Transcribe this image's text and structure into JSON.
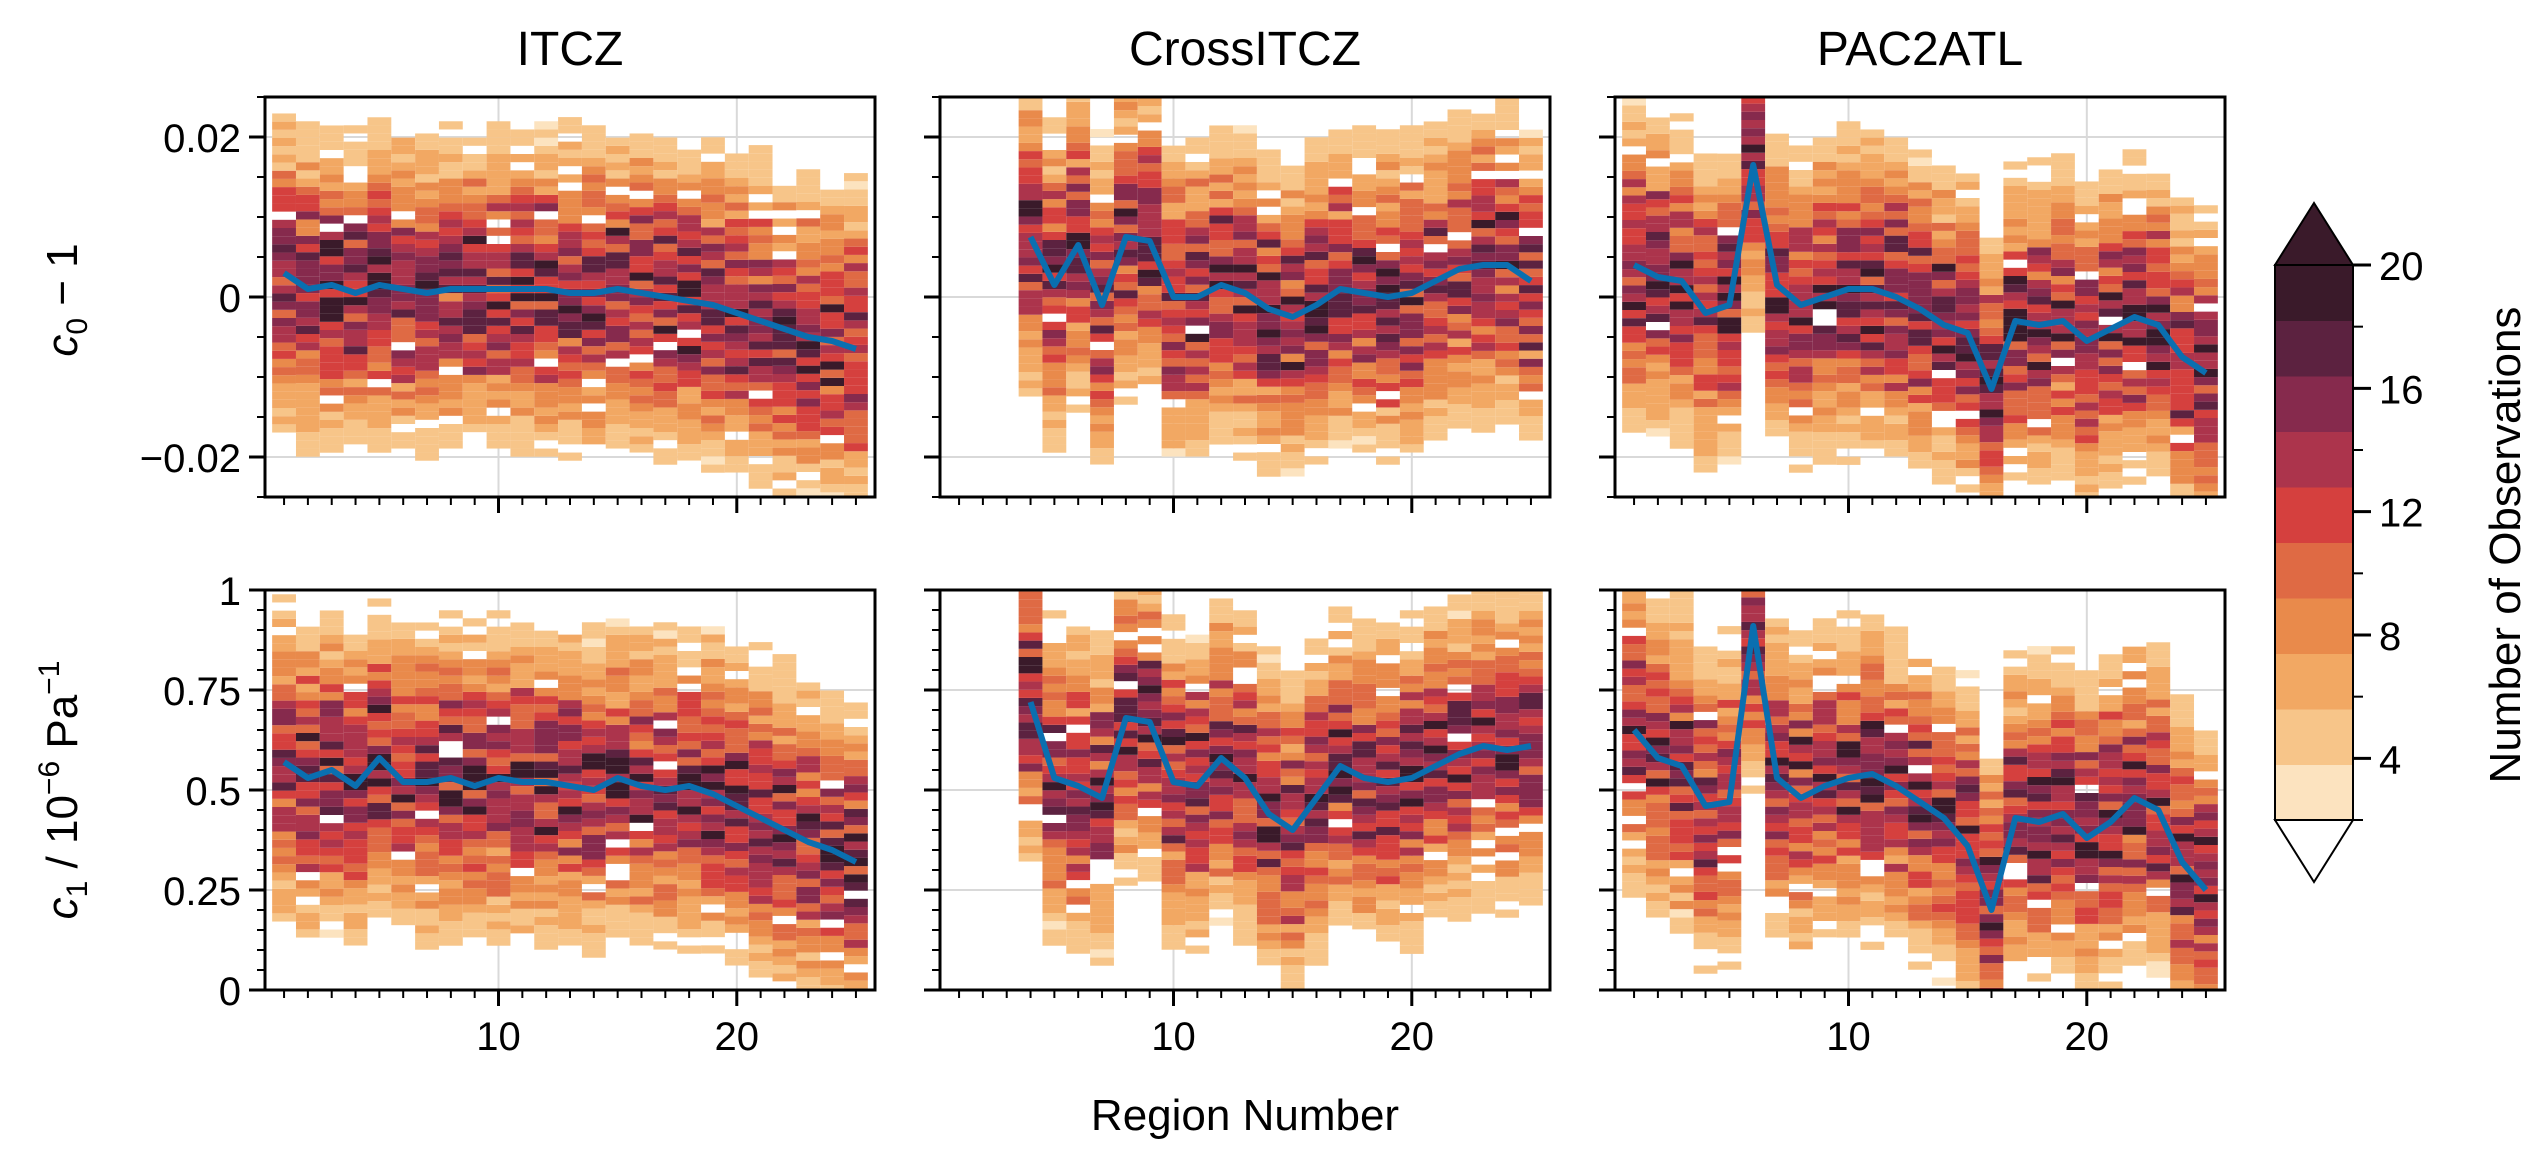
{
  "figure": {
    "xlabel": "Region Number",
    "row_labels": {
      "c0": {
        "main": "c",
        "sub": "0",
        "rest": " − 1"
      },
      "c1": {
        "main": "c",
        "sub": "1",
        "rest": " / 10",
        "sup1": "−6",
        "rest2": " Pa",
        "sup2": "−1"
      }
    },
    "colorbar": {
      "label": "Number of Observations",
      "levels": [
        2,
        4,
        6,
        8,
        10,
        12,
        14,
        16,
        18,
        20
      ],
      "colors": [
        "#fce3bf",
        "#f7c589",
        "#f2a863",
        "#e98a4b",
        "#df6a44",
        "#d5403e",
        "#ac344c",
        "#862a4d",
        "#5c2240",
        "#3a1a2a"
      ],
      "ticks": [
        "4",
        "8",
        "12",
        "16",
        "20"
      ],
      "extend": "both"
    },
    "line_color": "#0a6fb0"
  },
  "chart_data": [
    {
      "type": "heatmap",
      "panel": "ITCZ-c0",
      "title": "ITCZ",
      "x_range": [
        0,
        25
      ],
      "ylim": [
        -0.025,
        0.025
      ],
      "yticks": [
        "0.02",
        "0",
        "−0.02"
      ],
      "ytick_values": [
        0.02,
        0,
        -0.02
      ],
      "xticks": [
        "10",
        "20"
      ],
      "xtick_values": [
        10,
        20
      ],
      "grid": true,
      "median_line": {
        "x": [
          1,
          2,
          3,
          4,
          5,
          6,
          7,
          8,
          9,
          10,
          11,
          12,
          13,
          14,
          15,
          16,
          17,
          18,
          19,
          20,
          21,
          22,
          23,
          24,
          25
        ],
        "y": [
          0.003,
          0.001,
          0.0015,
          0.0005,
          0.0015,
          0.001,
          0.0005,
          0.001,
          0.001,
          0.001,
          0.001,
          0.001,
          0.0005,
          0.0005,
          0.001,
          0.0005,
          0.0,
          -0.0005,
          -0.001,
          -0.002,
          -0.003,
          -0.004,
          -0.005,
          -0.0055,
          -0.0065
        ]
      }
    },
    {
      "type": "heatmap",
      "panel": "CrossITCZ-c0",
      "title": "CrossITCZ",
      "x_range": [
        0,
        25
      ],
      "ylim": [
        -0.025,
        0.025
      ],
      "xticks": [
        "10",
        "20"
      ],
      "xtick_values": [
        10,
        20
      ],
      "grid": true,
      "median_line": {
        "x": [
          4,
          5,
          6,
          7,
          8,
          9,
          10,
          11,
          12,
          13,
          14,
          15,
          16,
          17,
          18,
          19,
          20,
          21,
          22,
          23,
          24,
          25
        ],
        "y": [
          0.0075,
          0.0015,
          0.0065,
          -0.001,
          0.0075,
          0.007,
          0.0,
          0.0,
          0.0015,
          0.0005,
          -0.0015,
          -0.0025,
          -0.001,
          0.001,
          0.0005,
          0.0,
          0.0005,
          0.002,
          0.0035,
          0.004,
          0.004,
          0.002
        ]
      }
    },
    {
      "type": "heatmap",
      "panel": "PAC2ATL-c0",
      "title": "PAC2ATL",
      "x_range": [
        0,
        25
      ],
      "ylim": [
        -0.025,
        0.025
      ],
      "xticks": [
        "10",
        "20"
      ],
      "xtick_values": [
        10,
        20
      ],
      "grid": true,
      "median_line": {
        "x": [
          1,
          2,
          3,
          4,
          5,
          6,
          7,
          8,
          9,
          10,
          11,
          12,
          13,
          14,
          15,
          16,
          17,
          18,
          19,
          20,
          21,
          22,
          23,
          24,
          25
        ],
        "y": [
          0.004,
          0.0025,
          0.002,
          -0.002,
          -0.001,
          0.0165,
          0.0015,
          -0.001,
          0.0,
          0.001,
          0.001,
          0.0,
          -0.0015,
          -0.0035,
          -0.0045,
          -0.0115,
          -0.003,
          -0.0035,
          -0.003,
          -0.0055,
          -0.004,
          -0.0025,
          -0.0035,
          -0.0075,
          -0.0095
        ]
      }
    },
    {
      "type": "heatmap",
      "panel": "ITCZ-c1",
      "x_range": [
        0,
        25
      ],
      "ylim": [
        0,
        1
      ],
      "yticks": [
        "1",
        "0.75",
        "0.5",
        "0.25",
        "0"
      ],
      "ytick_values": [
        1,
        0.75,
        0.5,
        0.25,
        0
      ],
      "xticks": [
        "10",
        "20"
      ],
      "xtick_values": [
        10,
        20
      ],
      "grid": true,
      "median_line": {
        "x": [
          1,
          2,
          3,
          4,
          5,
          6,
          7,
          8,
          9,
          10,
          11,
          12,
          13,
          14,
          15,
          16,
          17,
          18,
          19,
          20,
          21,
          22,
          23,
          24,
          25
        ],
        "y": [
          0.57,
          0.53,
          0.55,
          0.51,
          0.58,
          0.52,
          0.52,
          0.53,
          0.51,
          0.53,
          0.52,
          0.52,
          0.51,
          0.5,
          0.53,
          0.51,
          0.5,
          0.51,
          0.49,
          0.46,
          0.43,
          0.4,
          0.37,
          0.35,
          0.32
        ]
      }
    },
    {
      "type": "heatmap",
      "panel": "CrossITCZ-c1",
      "x_range": [
        0,
        25
      ],
      "ylim": [
        0,
        1
      ],
      "xticks": [
        "10",
        "20"
      ],
      "xtick_values": [
        10,
        20
      ],
      "grid": true,
      "median_line": {
        "x": [
          4,
          5,
          6,
          7,
          8,
          9,
          10,
          11,
          12,
          13,
          14,
          15,
          16,
          17,
          18,
          19,
          20,
          21,
          22,
          23,
          24,
          25
        ],
        "y": [
          0.72,
          0.53,
          0.51,
          0.48,
          0.68,
          0.67,
          0.52,
          0.51,
          0.58,
          0.53,
          0.44,
          0.4,
          0.48,
          0.56,
          0.53,
          0.52,
          0.53,
          0.56,
          0.59,
          0.61,
          0.6,
          0.61
        ]
      }
    },
    {
      "type": "heatmap",
      "panel": "PAC2ATL-c1",
      "x_range": [
        0,
        25
      ],
      "ylim": [
        0,
        1
      ],
      "xticks": [
        "10",
        "20"
      ],
      "xtick_values": [
        10,
        20
      ],
      "grid": true,
      "median_line": {
        "x": [
          1,
          2,
          3,
          4,
          5,
          6,
          7,
          8,
          9,
          10,
          11,
          12,
          13,
          14,
          15,
          16,
          17,
          18,
          19,
          20,
          21,
          22,
          23,
          24,
          25
        ],
        "y": [
          0.65,
          0.58,
          0.56,
          0.46,
          0.47,
          0.91,
          0.53,
          0.48,
          0.51,
          0.53,
          0.54,
          0.51,
          0.47,
          0.43,
          0.36,
          0.2,
          0.43,
          0.42,
          0.44,
          0.38,
          0.42,
          0.48,
          0.45,
          0.32,
          0.25
        ]
      }
    }
  ]
}
